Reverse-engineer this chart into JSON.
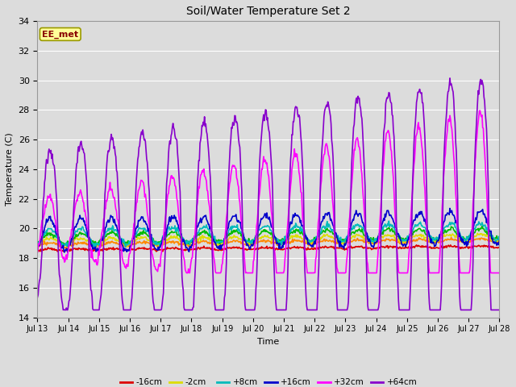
{
  "title": "Soil/Water Temperature Set 2",
  "xlabel": "Time",
  "ylabel": "Temperature (C)",
  "ylim": [
    14,
    34
  ],
  "yticks": [
    14,
    16,
    18,
    20,
    22,
    24,
    26,
    28,
    30,
    32,
    34
  ],
  "background_color": "#dcdcdc",
  "plot_bg_color": "#dcdcdc",
  "annotation_text": "EE_met",
  "annotation_bg": "#ffff99",
  "annotation_border": "#999900",
  "annotation_text_color": "#880000",
  "series": {
    "-16cm": {
      "color": "#dd0000",
      "linewidth": 1.2
    },
    "-8cm": {
      "color": "#ff8800",
      "linewidth": 1.2
    },
    "-2cm": {
      "color": "#dddd00",
      "linewidth": 1.2
    },
    "+2cm": {
      "color": "#00bb00",
      "linewidth": 1.2
    },
    "+8cm": {
      "color": "#00bbbb",
      "linewidth": 1.2
    },
    "+16cm": {
      "color": "#0000cc",
      "linewidth": 1.2
    },
    "+32cm": {
      "color": "#ff00ff",
      "linewidth": 1.2
    },
    "+64cm": {
      "color": "#8800cc",
      "linewidth": 1.2
    }
  },
  "n_points": 720,
  "x_start": 0,
  "x_end": 15,
  "xtick_positions": [
    0,
    1,
    2,
    3,
    4,
    5,
    6,
    7,
    8,
    9,
    10,
    11,
    12,
    13,
    14,
    15
  ],
  "xtick_labels": [
    "Jul 13",
    "Jul 14",
    "Jul 15",
    "Jul 16",
    "Jul 17",
    "Jul 18",
    "Jul 19",
    "Jul 20",
    "Jul 21",
    "Jul 22",
    "Jul 23",
    "Jul 24",
    "Jul 25",
    "Jul 26",
    "Jul 27",
    "Jul 28"
  ]
}
